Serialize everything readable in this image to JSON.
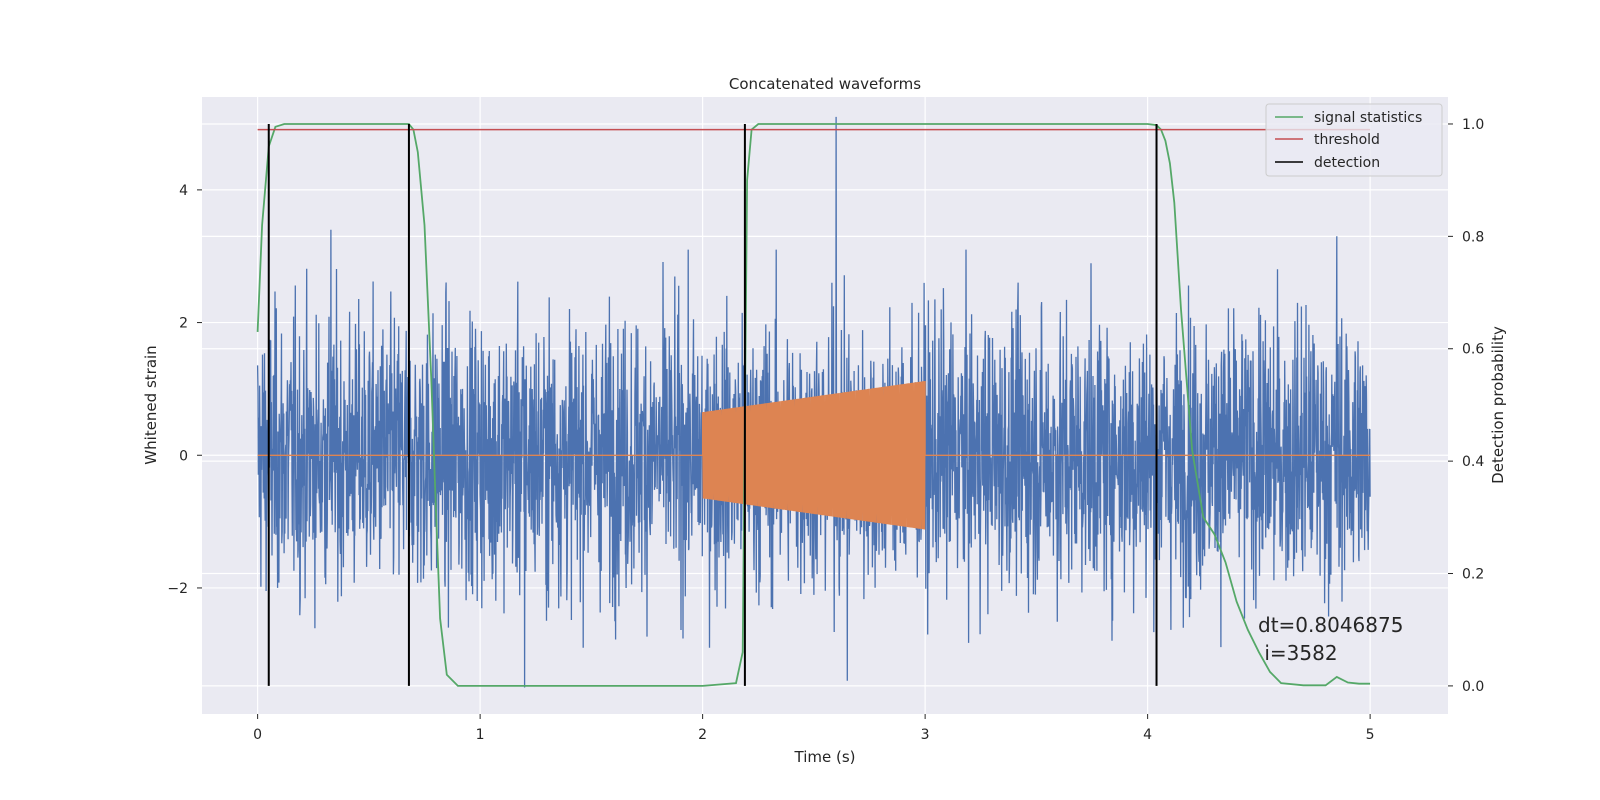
{
  "chart_data": {
    "type": "line",
    "title": "Concatenated waveforms",
    "xlabel": "Time (s)",
    "ylabel_left": "Whitened strain",
    "ylabel_right": "Detection probability",
    "xlim": [
      -0.25,
      5.35
    ],
    "ylim_left": [
      -3.9,
      5.4
    ],
    "ylim_right": [
      -0.05,
      1.048
    ],
    "x_ticks": [
      "0",
      "1",
      "2",
      "3",
      "4",
      "5"
    ],
    "x_tick_values": [
      0,
      1,
      2,
      3,
      4,
      5
    ],
    "y_left_ticks": [
      "−2",
      "0",
      "2",
      "4"
    ],
    "y_left_tick_values": [
      -2,
      0,
      2,
      4
    ],
    "y_right_ticks": [
      "0.0",
      "0.2",
      "0.4",
      "0.6",
      "0.8",
      "1.0"
    ],
    "y_right_tick_values": [
      0.0,
      0.2,
      0.4,
      0.6,
      0.8,
      1.0
    ],
    "grid": true,
    "legend_position": "top-right",
    "legend": [
      {
        "name": "signal statistics",
        "color": "#55a868"
      },
      {
        "name": "threshold",
        "color": "#c44e52"
      },
      {
        "name": "detection",
        "color": "#000000"
      }
    ],
    "series": [
      {
        "name": "whitened strain (noise)",
        "axis": "left",
        "color": "#4c72b0",
        "x_range": [
          0,
          5
        ],
        "approx_amplitude": 1.6,
        "spikes": [
          {
            "x": 0.33,
            "y": 3.4
          },
          {
            "x": 1.2,
            "y": -3.5
          },
          {
            "x": 2.6,
            "y": 5.1
          },
          {
            "x": 2.65,
            "y": -3.4
          },
          {
            "x": 4.85,
            "y": 3.3
          }
        ]
      },
      {
        "name": "injected chirp",
        "axis": "left",
        "color": "#dd8452",
        "baseline": 0,
        "x_range": [
          0,
          5
        ],
        "chirp_x": [
          2.0,
          3.0
        ],
        "chirp_amplitude": [
          0.65,
          1.12
        ]
      },
      {
        "name": "signal statistics",
        "axis": "right",
        "color": "#55a868",
        "x": [
          0,
          0.02,
          0.05,
          0.08,
          0.12,
          0.3,
          0.6,
          0.68,
          0.7,
          0.72,
          0.75,
          0.78,
          0.8,
          0.82,
          0.85,
          0.9,
          1.2,
          1.5,
          2.0,
          2.15,
          2.18,
          2.2,
          2.22,
          2.25,
          2.5,
          3.0,
          3.5,
          4.0,
          4.04,
          4.06,
          4.08,
          4.1,
          4.12,
          4.15,
          4.2,
          4.25,
          4.3,
          4.35,
          4.4,
          4.45,
          4.5,
          4.55,
          4.6,
          4.7,
          4.8,
          4.85,
          4.9,
          4.95,
          5.0
        ],
        "y": [
          0.63,
          0.82,
          0.96,
          0.995,
          1.0,
          1.0,
          1.0,
          1.0,
          0.99,
          0.95,
          0.82,
          0.55,
          0.33,
          0.12,
          0.02,
          0.0,
          0.0,
          0.0,
          0.0,
          0.005,
          0.06,
          0.9,
          0.99,
          1.0,
          1.0,
          1.0,
          1.0,
          1.0,
          0.998,
          0.99,
          0.97,
          0.93,
          0.86,
          0.67,
          0.42,
          0.3,
          0.27,
          0.22,
          0.15,
          0.1,
          0.06,
          0.025,
          0.005,
          0.001,
          0.001,
          0.016,
          0.006,
          0.004,
          0.004
        ]
      },
      {
        "name": "threshold",
        "axis": "right",
        "color": "#c44e52",
        "x": [
          0,
          5
        ],
        "y": [
          0.99,
          0.99
        ]
      },
      {
        "name": "detection",
        "axis": "right",
        "color": "#000000",
        "x": [
          0.05,
          0.68,
          2.19,
          4.04
        ],
        "y_range": [
          0.0,
          1.0
        ]
      }
    ],
    "annotation": {
      "line1": "dt=0.8046875",
      "line2": " i=3582",
      "x": 4.5,
      "y_left": -2.6
    }
  }
}
